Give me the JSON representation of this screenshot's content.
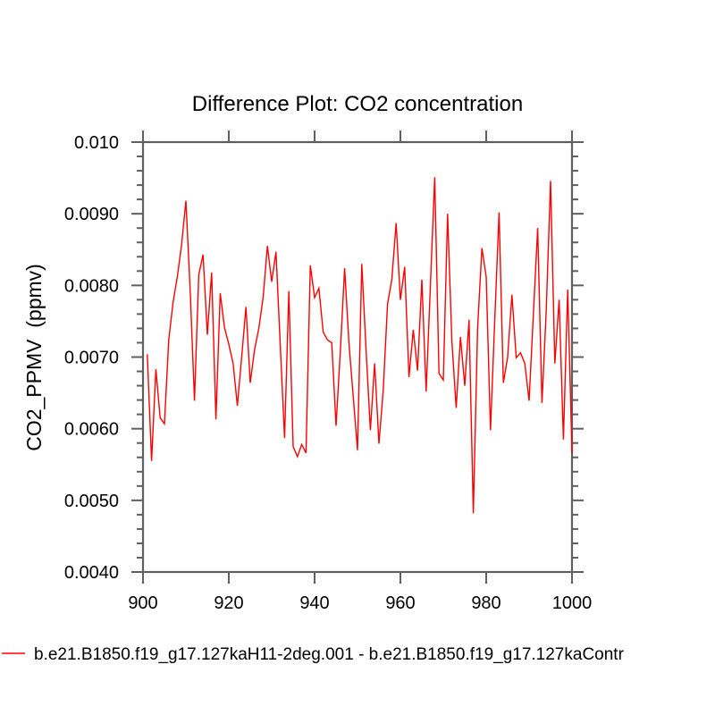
{
  "colors": {
    "axis": "#5f5f5f",
    "text": "#000000",
    "line": "#ff0000",
    "background": "#ffffff"
  },
  "chart_data": {
    "type": "line",
    "title": "Difference Plot: CO2 concentration",
    "xlabel": "",
    "ylabel": "CO2_PPMV  (ppmv)",
    "xlim": [
      900,
      1000
    ],
    "ylim": [
      0.004,
      0.01
    ],
    "x_tick_values": [
      900,
      920,
      940,
      960,
      980,
      1000
    ],
    "x_tick_labels": [
      "900",
      "920",
      "940",
      "960",
      "980",
      "1000"
    ],
    "y_tick_values": [
      0.004,
      0.005,
      0.006,
      0.007,
      0.008,
      0.009,
      0.01
    ],
    "y_tick_labels": [
      "0.0040",
      "0.0050",
      "0.0060",
      "0.0070",
      "0.0080",
      "0.0090",
      "0.010"
    ],
    "y_minor_step": 0.0002,
    "grid": false,
    "legend_position": "bottom-left",
    "x_start": 901,
    "x_step": 1,
    "series": [
      {
        "name": "b.e21.B1850.f19_g17.127kaH11-2deg.001 - b.e21.B1850.f19_g17.127kaContr",
        "color": "#ff0000",
        "y": [
          0.00704,
          0.00555,
          0.00683,
          0.00615,
          0.00607,
          0.00724,
          0.00776,
          0.00812,
          0.00857,
          0.00918,
          0.00793,
          0.00639,
          0.00815,
          0.00843,
          0.00731,
          0.00818,
          0.00613,
          0.00789,
          0.00741,
          0.00718,
          0.00691,
          0.00632,
          0.007,
          0.0077,
          0.00664,
          0.0071,
          0.0074,
          0.00783,
          0.00855,
          0.00805,
          0.00847,
          0.00716,
          0.00587,
          0.00792,
          0.00575,
          0.00561,
          0.00578,
          0.00566,
          0.00828,
          0.00783,
          0.00796,
          0.00735,
          0.00724,
          0.0072,
          0.00604,
          0.00708,
          0.00824,
          0.0072,
          0.00645,
          0.0057,
          0.0083,
          0.0071,
          0.00598,
          0.00691,
          0.00579,
          0.00654,
          0.00774,
          0.00808,
          0.00887,
          0.0078,
          0.00826,
          0.00672,
          0.00738,
          0.00681,
          0.00808,
          0.00652,
          0.00801,
          0.00951,
          0.00677,
          0.00668,
          0.009,
          0.00722,
          0.00629,
          0.00728,
          0.0066,
          0.00752,
          0.00482,
          0.00741,
          0.00852,
          0.00812,
          0.00598,
          0.00753,
          0.00902,
          0.00664,
          0.007,
          0.00787,
          0.00699,
          0.00706,
          0.00691,
          0.00639,
          0.0076,
          0.0088,
          0.00636,
          0.00766,
          0.00946,
          0.00691,
          0.0078,
          0.00585,
          0.00794,
          0.00566
        ]
      }
    ]
  }
}
